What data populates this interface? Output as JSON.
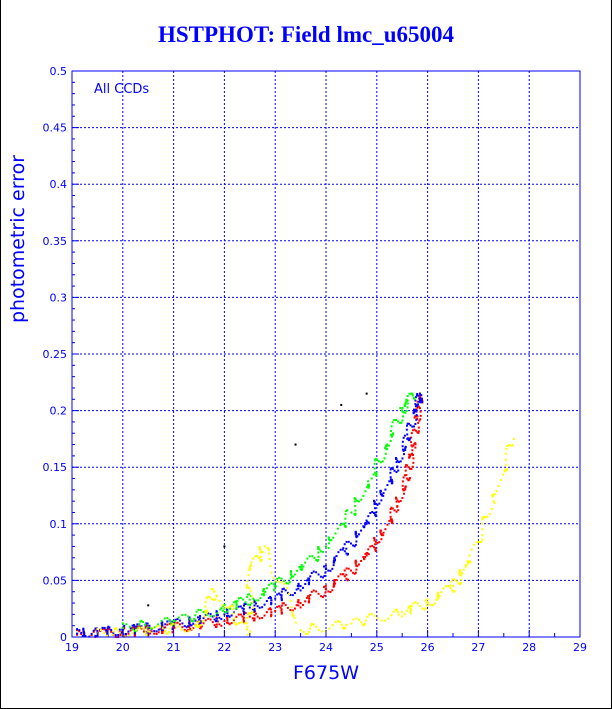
{
  "chart_data": {
    "type": "scatter",
    "title": "HSTPHOT: Field lmc_u65004",
    "xlabel": "F675W",
    "ylabel": "photometric error",
    "annotation": "All CCDs",
    "xlim": [
      19,
      29
    ],
    "ylim": [
      0,
      0.5
    ],
    "x_ticks": [
      "19",
      "20",
      "21",
      "22",
      "23",
      "24",
      "25",
      "26",
      "27",
      "28",
      "29"
    ],
    "y_ticks": [
      "0",
      "0.05",
      "0.1",
      "0.15",
      "0.2",
      "0.25",
      "0.3",
      "0.35",
      "0.4",
      "0.45",
      "0.5"
    ],
    "grid": true,
    "colors": {
      "axis": "#0000ff",
      "grid": "#0000ff"
    },
    "series": [
      {
        "color": "#ff0000",
        "points": [
          [
            19.1,
            0.002
          ],
          [
            19.5,
            0.003
          ],
          [
            20,
            0.004
          ],
          [
            20.5,
            0.006
          ],
          [
            21,
            0.008
          ],
          [
            21.5,
            0.011
          ],
          [
            22,
            0.014
          ],
          [
            22.5,
            0.018
          ],
          [
            23,
            0.023
          ],
          [
            23.5,
            0.03
          ],
          [
            24,
            0.042
          ],
          [
            24.4,
            0.055
          ],
          [
            24.8,
            0.072
          ],
          [
            25.1,
            0.09
          ],
          [
            25.4,
            0.115
          ],
          [
            25.6,
            0.14
          ],
          [
            25.7,
            0.165
          ],
          [
            25.8,
            0.195
          ],
          [
            25.85,
            0.215
          ]
        ]
      },
      {
        "color": "#0000ff",
        "points": [
          [
            19.1,
            0.003
          ],
          [
            19.5,
            0.004
          ],
          [
            20,
            0.006
          ],
          [
            20.5,
            0.008
          ],
          [
            21,
            0.011
          ],
          [
            21.5,
            0.015
          ],
          [
            22,
            0.02
          ],
          [
            22.5,
            0.026
          ],
          [
            23,
            0.034
          ],
          [
            23.5,
            0.045
          ],
          [
            24,
            0.06
          ],
          [
            24.4,
            0.078
          ],
          [
            24.8,
            0.1
          ],
          [
            25.1,
            0.125
          ],
          [
            25.4,
            0.15
          ],
          [
            25.6,
            0.175
          ],
          [
            25.8,
            0.205
          ],
          [
            25.85,
            0.215
          ]
        ]
      },
      {
        "color": "#00ff00",
        "points": [
          [
            20,
            0.008
          ],
          [
            21,
            0.014
          ],
          [
            22,
            0.025
          ],
          [
            22.5,
            0.033
          ],
          [
            23,
            0.045
          ],
          [
            23.5,
            0.06
          ],
          [
            24,
            0.08
          ],
          [
            24.5,
            0.11
          ],
          [
            24.9,
            0.14
          ],
          [
            25.2,
            0.17
          ],
          [
            25.5,
            0.2
          ],
          [
            25.7,
            0.215
          ]
        ]
      },
      {
        "color": "#ffff00",
        "points": [
          [
            19.5,
            0.003
          ],
          [
            20.5,
            0.005
          ],
          [
            21.5,
            0.01
          ],
          [
            22.5,
            0.003
          ],
          [
            23.5,
            0.006
          ],
          [
            24.5,
            0.012
          ],
          [
            25.5,
            0.022
          ],
          [
            26,
            0.03
          ],
          [
            26.5,
            0.045
          ],
          [
            26.8,
            0.065
          ],
          [
            27.3,
            0.12
          ],
          [
            27.7,
            0.175
          ],
          [
            22.5,
            0.06
          ],
          [
            21.8,
            0.04
          ],
          [
            22.8,
            0.08
          ]
        ]
      },
      {
        "color": "#000000",
        "points": [
          [
            20.5,
            0.028
          ],
          [
            22,
            0.08
          ],
          [
            23.4,
            0.17
          ],
          [
            24.3,
            0.205
          ],
          [
            24.8,
            0.215
          ]
        ]
      }
    ]
  }
}
